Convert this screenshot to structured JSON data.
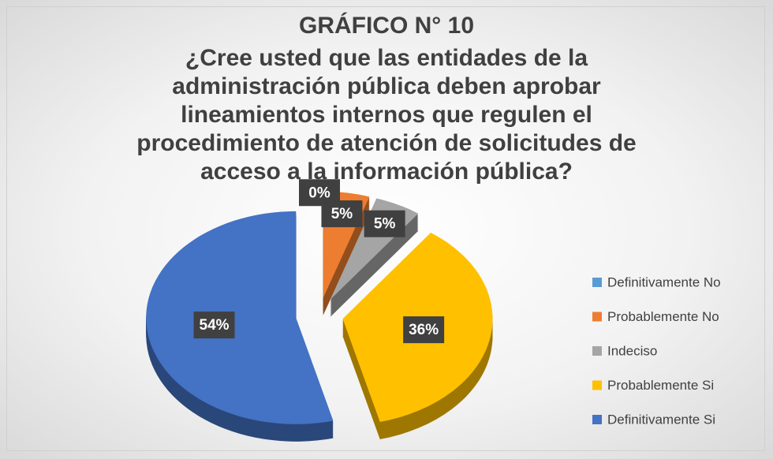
{
  "chart_data": {
    "type": "pie",
    "title": "GRÁFICO N° 10",
    "subtitle": "¿Cree usted que las entidades de la administración pública deben aprobar lineamientos internos que regulen el procedimiento de atención de solicitudes de acceso a la información pública?",
    "categories": [
      "Definitivamente No",
      "Probablemente No",
      "Indeciso",
      "Probablemente Si",
      "Definitivamente Si"
    ],
    "values": [
      0,
      5,
      5,
      36,
      54
    ],
    "value_labels": [
      "0%",
      "5%",
      "5%",
      "36%",
      "54%"
    ],
    "colors": [
      "#5b9bd5",
      "#ed7d31",
      "#a5a5a5",
      "#ffc000",
      "#4472c4"
    ],
    "legend": "right"
  }
}
